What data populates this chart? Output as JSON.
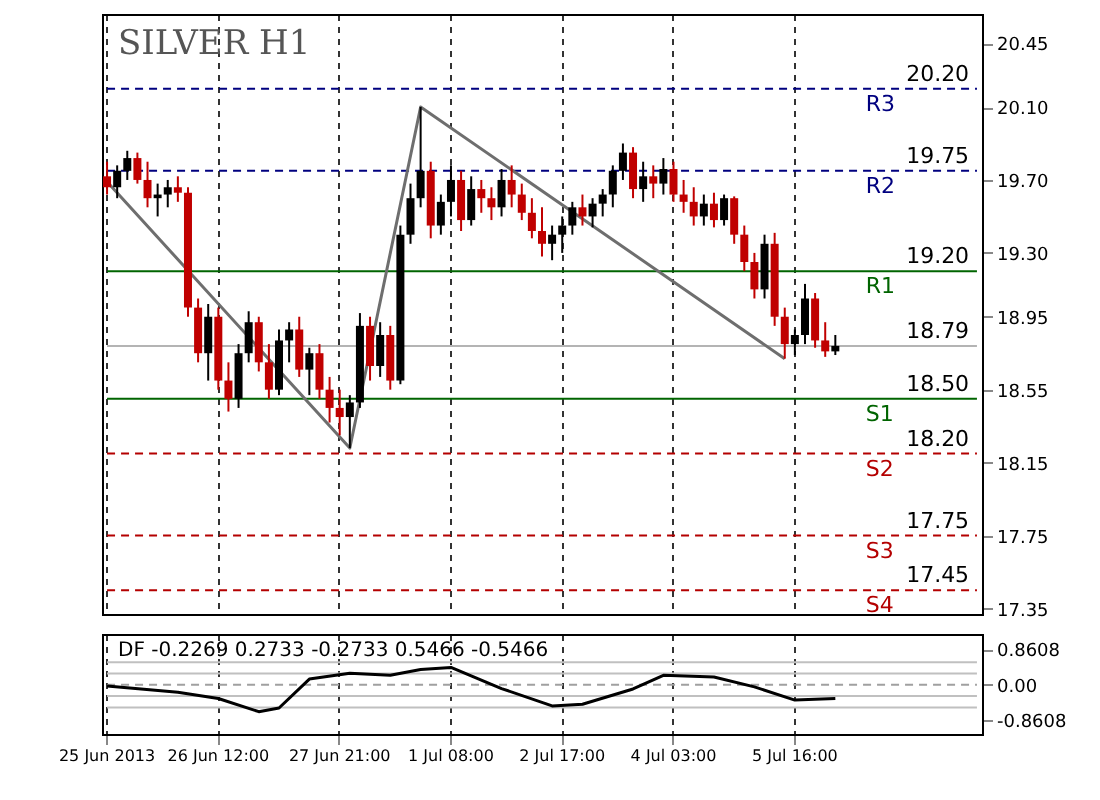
{
  "chart_data": [
    {
      "type": "candlestick",
      "title": "SILVER H1",
      "categories": [
        null,
        null,
        null,
        null,
        null,
        null,
        null,
        null,
        null,
        null,
        null,
        null,
        null,
        null,
        null,
        null,
        null,
        null,
        null,
        null,
        null,
        null,
        null,
        null,
        null,
        null,
        null,
        null,
        null,
        null,
        null,
        null,
        null,
        null,
        null,
        null,
        null,
        null,
        null,
        null,
        null,
        null,
        null,
        null,
        null,
        null,
        null,
        null,
        null,
        null,
        null,
        null,
        null,
        null,
        null,
        null,
        null,
        null,
        null,
        null,
        null,
        null,
        null,
        null,
        null,
        null,
        null,
        null,
        null,
        null,
        null,
        null,
        null,
        null,
        null,
        null,
        null,
        null,
        null,
        null,
        null,
        null,
        null,
        null,
        null,
        null,
        null
      ],
      "ohlc": [
        [
          19.72,
          19.8,
          19.62,
          19.66
        ],
        [
          19.66,
          19.78,
          19.6,
          19.75
        ],
        [
          19.75,
          19.86,
          19.7,
          19.82
        ],
        [
          19.82,
          19.85,
          19.68,
          19.7
        ],
        [
          19.7,
          19.8,
          19.55,
          19.6
        ],
        [
          19.6,
          19.68,
          19.5,
          19.62
        ],
        [
          19.62,
          19.7,
          19.55,
          19.66
        ],
        [
          19.66,
          19.72,
          19.58,
          19.63
        ],
        [
          19.63,
          19.66,
          18.95,
          19.0
        ],
        [
          19.0,
          19.05,
          18.7,
          18.75
        ],
        [
          18.75,
          19.02,
          18.6,
          18.95
        ],
        [
          18.95,
          19.0,
          18.55,
          18.6
        ],
        [
          18.6,
          18.7,
          18.43,
          18.5
        ],
        [
          18.5,
          18.8,
          18.45,
          18.75
        ],
        [
          18.75,
          18.98,
          18.7,
          18.92
        ],
        [
          18.92,
          18.95,
          18.65,
          18.7
        ],
        [
          18.7,
          18.8,
          18.5,
          18.55
        ],
        [
          18.55,
          18.88,
          18.52,
          18.82
        ],
        [
          18.82,
          18.92,
          18.7,
          18.88
        ],
        [
          18.88,
          18.95,
          18.62,
          18.66
        ],
        [
          18.66,
          18.78,
          18.52,
          18.75
        ],
        [
          18.75,
          18.8,
          18.5,
          18.55
        ],
        [
          18.55,
          18.62,
          18.37,
          18.45
        ],
        [
          18.45,
          18.55,
          18.3,
          18.4
        ],
        [
          18.4,
          18.52,
          18.23,
          18.48
        ],
        [
          18.48,
          18.97,
          18.45,
          18.9
        ],
        [
          18.9,
          18.95,
          18.6,
          18.68
        ],
        [
          18.68,
          18.92,
          18.62,
          18.85
        ],
        [
          18.85,
          18.9,
          18.55,
          18.6
        ],
        [
          18.6,
          19.45,
          18.58,
          19.4
        ],
        [
          19.4,
          19.68,
          19.35,
          19.6
        ],
        [
          19.6,
          20.1,
          19.55,
          19.75
        ],
        [
          19.75,
          19.8,
          19.38,
          19.45
        ],
        [
          19.45,
          19.62,
          19.4,
          19.58
        ],
        [
          19.58,
          19.78,
          19.5,
          19.7
        ],
        [
          19.7,
          19.75,
          19.42,
          19.48
        ],
        [
          19.48,
          19.72,
          19.45,
          19.65
        ],
        [
          19.65,
          19.7,
          19.52,
          19.6
        ],
        [
          19.6,
          19.66,
          19.48,
          19.55
        ],
        [
          19.55,
          19.76,
          19.5,
          19.7
        ],
        [
          19.7,
          19.78,
          19.55,
          19.62
        ],
        [
          19.62,
          19.68,
          19.48,
          19.52
        ],
        [
          19.52,
          19.6,
          19.38,
          19.42
        ],
        [
          19.42,
          19.55,
          19.28,
          19.35
        ],
        [
          19.35,
          19.45,
          19.26,
          19.4
        ],
        [
          19.4,
          19.5,
          19.3,
          19.45
        ],
        [
          19.45,
          19.58,
          19.4,
          19.55
        ],
        [
          19.55,
          19.62,
          19.45,
          19.5
        ],
        [
          19.5,
          19.6,
          19.44,
          19.57
        ],
        [
          19.57,
          19.65,
          19.5,
          19.62
        ],
        [
          19.62,
          19.78,
          19.55,
          19.75
        ],
        [
          19.75,
          19.9,
          19.7,
          19.85
        ],
        [
          19.85,
          19.88,
          19.6,
          19.65
        ],
        [
          19.65,
          19.8,
          19.58,
          19.72
        ],
        [
          19.72,
          19.78,
          19.6,
          19.68
        ],
        [
          19.68,
          19.82,
          19.62,
          19.76
        ],
        [
          19.76,
          19.8,
          19.58,
          19.62
        ],
        [
          19.62,
          19.7,
          19.52,
          19.58
        ],
        [
          19.58,
          19.66,
          19.45,
          19.5
        ],
        [
          19.5,
          19.62,
          19.45,
          19.57
        ],
        [
          19.57,
          19.63,
          19.44,
          19.48
        ],
        [
          19.48,
          19.62,
          19.45,
          19.6
        ],
        [
          19.6,
          19.61,
          19.35,
          19.4
        ],
        [
          19.4,
          19.45,
          19.2,
          19.25
        ],
        [
          19.25,
          19.3,
          19.05,
          19.1
        ],
        [
          19.1,
          19.4,
          19.05,
          19.35
        ],
        [
          19.35,
          19.41,
          18.9,
          18.95
        ],
        [
          18.95,
          19.0,
          18.72,
          18.8
        ],
        [
          18.8,
          18.88,
          18.74,
          18.85
        ],
        [
          18.85,
          19.13,
          18.8,
          19.05
        ],
        [
          19.05,
          19.08,
          18.78,
          18.82
        ],
        [
          18.82,
          18.92,
          18.73,
          18.76
        ],
        [
          18.76,
          18.85,
          18.74,
          18.79
        ],
        null,
        null,
        null,
        null,
        null,
        null,
        null,
        null,
        null,
        null,
        null,
        null,
        null,
        null
      ],
      "series": [
        {
          "type": "line",
          "color": "#6e6e6e",
          "values": [
            19.69,
            null,
            null,
            null,
            null,
            null,
            null,
            null,
            null,
            null,
            null,
            null,
            null,
            null,
            null,
            null,
            null,
            null,
            null,
            null,
            null,
            null,
            null,
            null,
            18.23,
            null,
            null,
            null,
            null,
            null,
            null,
            20.1,
            null,
            null,
            null,
            null,
            null,
            null,
            null,
            null,
            null,
            null,
            null,
            null,
            null,
            null,
            null,
            null,
            null,
            null,
            null,
            null,
            null,
            null,
            null,
            null,
            null,
            null,
            null,
            null,
            null,
            null,
            null,
            null,
            null,
            null,
            null,
            18.72,
            null,
            null,
            null,
            null,
            null,
            null,
            null,
            null,
            null,
            null,
            null,
            null,
            null,
            null,
            null,
            null,
            null,
            null,
            null
          ]
        }
      ],
      "ylim": [
        17.32,
        20.61
      ],
      "yticks": [
        20.45,
        {
          "value": 20.1,
          "label": "20.10"
        },
        {
          "value": 19.7,
          "label": "19.70"
        },
        {
          "value": 19.3,
          "label": "19.30"
        },
        18.95,
        18.55,
        18.15,
        17.75,
        17.35
      ],
      "ref_lines": [
        {
          "axis": "y",
          "value": 20.2,
          "label": "R3",
          "color": "#00007f",
          "line_style": "dashed"
        },
        {
          "axis": "y",
          "value": 19.75,
          "label": "R2",
          "color": "#00007f",
          "line_style": "dashed"
        },
        {
          "axis": "y",
          "value": 19.2,
          "label": "R1",
          "color": "#006400",
          "line_style": "solid"
        },
        {
          "axis": "y",
          "value": 18.79,
          "color": "#b4b4b4",
          "line_style": "solid"
        },
        {
          "axis": "y",
          "value": 18.5,
          "label": "S1",
          "color": "#006400",
          "line_style": "solid"
        },
        {
          "axis": "y",
          "value": 18.2,
          "label": "S2",
          "color": "#b40000",
          "line_style": "dashed"
        },
        {
          "axis": "y",
          "value": 17.75,
          "label": "S3",
          "color": "#b40000",
          "line_style": "dashed"
        },
        {
          "axis": "y",
          "value": 17.45,
          "label": "S4",
          "color": "#b40000",
          "line_style": "dashed"
        }
      ],
      "annotations": [
        {
          "text": "20.20",
          "y": 20.2
        },
        {
          "text": "19.75",
          "y": 19.75
        },
        {
          "text": "19.20",
          "y": 19.2
        },
        {
          "text": "18.79",
          "y": 18.79
        },
        {
          "text": "18.50",
          "y": 18.5
        },
        {
          "text": "18.20",
          "y": 18.2
        },
        {
          "text": "17.75",
          "y": 17.75
        },
        {
          "text": "17.45",
          "y": 17.45
        }
      ],
      "grid": "x",
      "tick_labels": "y"
    },
    {
      "type": "line",
      "title": "DF -0.2269 0.2733 -0.2733 0.5466 -0.5466",
      "categories": [
        "25 Jun 2013",
        null,
        null,
        null,
        null,
        null,
        null,
        null,
        null,
        null,
        null,
        "26 Jun 12:00",
        null,
        null,
        null,
        null,
        null,
        null,
        null,
        null,
        null,
        null,
        null,
        "27 Jun 21:00",
        null,
        null,
        null,
        null,
        null,
        null,
        null,
        null,
        null,
        null,
        "1 Jul 08:00",
        null,
        null,
        null,
        null,
        null,
        null,
        null,
        null,
        null,
        null,
        "2 Jul 17:00",
        null,
        null,
        null,
        null,
        null,
        null,
        null,
        null,
        null,
        null,
        "4 Jul 03:00",
        null,
        null,
        null,
        null,
        null,
        null,
        null,
        null,
        null,
        null,
        null,
        "5 Jul 16:00",
        null,
        null,
        null,
        null,
        null,
        null,
        null,
        null,
        null,
        null,
        null,
        null,
        null,
        null,
        null,
        null,
        null,
        null
      ],
      "series": [
        {
          "color": "#000000",
          "values": [
            -0.03,
            null,
            null,
            null,
            null,
            null,
            null,
            -0.18,
            null,
            null,
            null,
            -0.33,
            null,
            null,
            null,
            -0.65,
            null,
            -0.56,
            null,
            null,
            0.14,
            null,
            null,
            null,
            0.28,
            null,
            null,
            null,
            0.23,
            null,
            null,
            0.37,
            null,
            null,
            0.42,
            null,
            null,
            null,
            null,
            -0.09,
            null,
            null,
            null,
            null,
            -0.51,
            null,
            null,
            -0.47,
            null,
            null,
            null,
            null,
            -0.1,
            null,
            null,
            0.23,
            null,
            null,
            null,
            null,
            0.19,
            null,
            null,
            null,
            -0.05,
            null,
            null,
            null,
            -0.37,
            null,
            null,
            null,
            -0.33,
            null,
            null,
            null,
            null,
            null,
            null,
            null,
            null,
            null,
            null,
            null,
            null,
            null,
            null
          ]
        }
      ],
      "ylim": [
        -1.19,
        1.23
      ],
      "yticks": [
        0.8608,
        {
          "value": 0,
          "label": "0.00"
        },
        -0.8608
      ],
      "ref_lines": [
        {
          "axis": "y",
          "value": 0.5466,
          "color": "#c0c0c0",
          "line_style": "solid"
        },
        {
          "axis": "y",
          "value": 0.2733,
          "color": "#c0c0c0",
          "line_style": "solid"
        },
        {
          "axis": "y",
          "value": 0,
          "color": "#a0a0a0",
          "line_style": "dashed"
        },
        {
          "axis": "y",
          "value": -0.2733,
          "color": "#c0c0c0",
          "line_style": "solid"
        },
        {
          "axis": "y",
          "value": -0.5466,
          "color": "#c0c0c0",
          "line_style": "solid"
        }
      ],
      "grid": "x"
    }
  ]
}
